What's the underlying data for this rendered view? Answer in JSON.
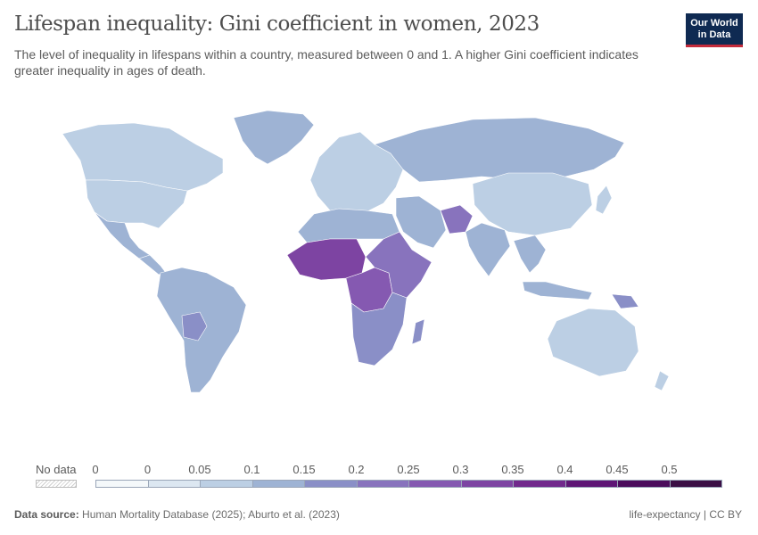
{
  "header": {
    "title": "Lifespan inequality: Gini coefficient in women, 2023",
    "subtitle": "The level of inequality in lifespans within a country, measured between 0 and 1. A higher Gini coefficient indicates greater inequality in ages of death."
  },
  "logo": {
    "line1": "Our World",
    "line2": "in Data"
  },
  "legend": {
    "no_data_label": "No data",
    "ticks": [
      "0",
      "0",
      "0.05",
      "0.1",
      "0.15",
      "0.2",
      "0.25",
      "0.3",
      "0.35",
      "0.4",
      "0.45",
      "0.5"
    ],
    "bins": [
      {
        "range": [
          "0",
          "0"
        ],
        "color": "#f4f8fa"
      },
      {
        "range": [
          "0",
          "0.05"
        ],
        "color": "#dce7f1"
      },
      {
        "range": [
          "0.05",
          "0.1"
        ],
        "color": "#bccfe4"
      },
      {
        "range": [
          "0.1",
          "0.15"
        ],
        "color": "#9eb3d4"
      },
      {
        "range": [
          "0.15",
          "0.2"
        ],
        "color": "#8a8fc7"
      },
      {
        "range": [
          "0.2",
          "0.25"
        ],
        "color": "#8873bd"
      },
      {
        "range": [
          "0.25",
          "0.3"
        ],
        "color": "#8559b1"
      },
      {
        "range": [
          "0.3",
          "0.35"
        ],
        "color": "#7d44a2"
      },
      {
        "range": [
          "0.35",
          "0.4"
        ],
        "color": "#71298c"
      },
      {
        "range": [
          "0.4",
          "0.45"
        ],
        "color": "#5e1575"
      },
      {
        "range": [
          "0.45",
          "0.5"
        ],
        "color": "#4b0c5c"
      },
      {
        "range": [
          "0.5",
          ""
        ],
        "color": "#3b0f45"
      }
    ]
  },
  "map": {
    "regions": [
      {
        "name": "Greenland",
        "color": "#9eb3d4"
      },
      {
        "name": "Canada",
        "color": "#bccfe4"
      },
      {
        "name": "United States",
        "color": "#bccfe4"
      },
      {
        "name": "Mexico",
        "color": "#9eb3d4"
      },
      {
        "name": "Central America",
        "color": "#9eb3d4"
      },
      {
        "name": "South America",
        "color": "#9eb3d4"
      },
      {
        "name": "Bolivia",
        "color": "#8a8fc7"
      },
      {
        "name": "Europe",
        "color": "#bccfe4"
      },
      {
        "name": "Russia",
        "color": "#9eb3d4"
      },
      {
        "name": "North Africa",
        "color": "#9eb3d4"
      },
      {
        "name": "West Africa",
        "color": "#7d44a2"
      },
      {
        "name": "Central Africa",
        "color": "#8559b1"
      },
      {
        "name": "East Africa",
        "color": "#8873bd"
      },
      {
        "name": "Southern Africa",
        "color": "#8a8fc7"
      },
      {
        "name": "Madagascar",
        "color": "#8a8fc7"
      },
      {
        "name": "Middle East",
        "color": "#9eb3d4"
      },
      {
        "name": "Afghanistan",
        "color": "#8873bd"
      },
      {
        "name": "India",
        "color": "#9eb3d4"
      },
      {
        "name": "China",
        "color": "#bccfe4"
      },
      {
        "name": "Southeast Asia",
        "color": "#9eb3d4"
      },
      {
        "name": "Indonesia",
        "color": "#9eb3d4"
      },
      {
        "name": "Papua New Guinea",
        "color": "#8a8fc7"
      },
      {
        "name": "Australia",
        "color": "#bccfe4"
      },
      {
        "name": "Japan",
        "color": "#bccfe4"
      },
      {
        "name": "New Zealand",
        "color": "#bccfe4"
      }
    ]
  },
  "footer": {
    "source_label": "Data source:",
    "source_text": "Human Mortality Database (2025); Aburto et al. (2023)",
    "right_text": "life-expectancy | CC BY"
  }
}
